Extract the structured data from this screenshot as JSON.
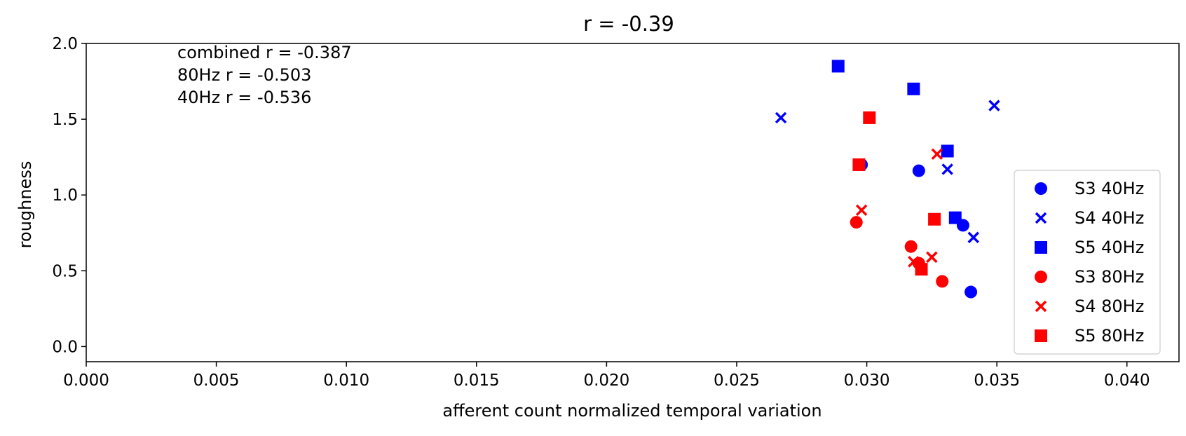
{
  "chart_data": {
    "type": "scatter",
    "title": "r = -0.39",
    "xlabel": "afferent count normalized temporal variation",
    "ylabel": "roughness",
    "xlim": [
      0.0,
      0.042
    ],
    "ylim": [
      -0.1,
      2.0
    ],
    "x_ticks": [
      "0.000",
      "0.005",
      "0.010",
      "0.015",
      "0.020",
      "0.025",
      "0.030",
      "0.035",
      "0.040"
    ],
    "y_ticks": [
      "0.0",
      "0.5",
      "1.0",
      "1.5",
      "2.0"
    ],
    "grid": false,
    "legend_position": "lower-right",
    "annotations": [
      "combined r = -0.387",
      "80Hz r = -0.503",
      "40Hz r = -0.536"
    ],
    "series": [
      {
        "name": "S3 40Hz",
        "color": "#0000ff",
        "marker": "circle",
        "points": [
          [
            0.0298,
            1.2
          ],
          [
            0.032,
            1.16
          ],
          [
            0.0337,
            0.8
          ],
          [
            0.034,
            0.36
          ]
        ]
      },
      {
        "name": "S4 40Hz",
        "color": "#0000ff",
        "marker": "x",
        "points": [
          [
            0.0267,
            1.51
          ],
          [
            0.0349,
            1.59
          ],
          [
            0.0331,
            1.17
          ],
          [
            0.0341,
            0.72
          ]
        ]
      },
      {
        "name": "S5 40Hz",
        "color": "#0000ff",
        "marker": "square",
        "points": [
          [
            0.0289,
            1.85
          ],
          [
            0.0318,
            1.7
          ],
          [
            0.0331,
            1.29
          ],
          [
            0.0334,
            0.85
          ]
        ]
      },
      {
        "name": "S3 80Hz",
        "color": "#ff0000",
        "marker": "circle",
        "points": [
          [
            0.0296,
            0.82
          ],
          [
            0.0317,
            0.66
          ],
          [
            0.032,
            0.55
          ],
          [
            0.0329,
            0.43
          ]
        ]
      },
      {
        "name": "S4 80Hz",
        "color": "#ff0000",
        "marker": "x",
        "points": [
          [
            0.0298,
            0.9
          ],
          [
            0.0327,
            1.27
          ],
          [
            0.0318,
            0.56
          ],
          [
            0.0325,
            0.59
          ]
        ]
      },
      {
        "name": "S5 80Hz",
        "color": "#ff0000",
        "marker": "square",
        "points": [
          [
            0.0301,
            1.51
          ],
          [
            0.0297,
            1.2
          ],
          [
            0.0326,
            0.84
          ],
          [
            0.0321,
            0.51
          ]
        ]
      }
    ]
  }
}
